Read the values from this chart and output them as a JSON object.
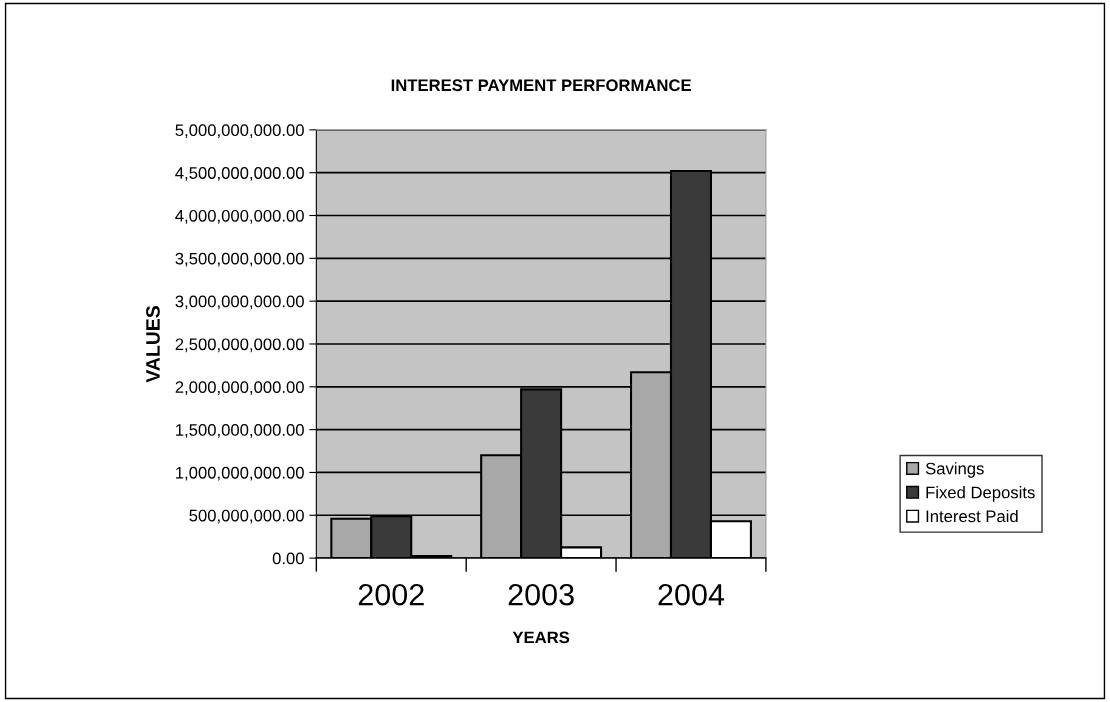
{
  "chart_data": {
    "type": "bar",
    "title": "INTEREST PAYMENT PERFORMANCE",
    "xlabel": "YEARS",
    "ylabel": "VALUES",
    "categories": [
      "2002",
      "2003",
      "2004"
    ],
    "series": [
      {
        "name": "Savings",
        "color": "#a8a8a8",
        "values": [
          460000000,
          1200000000,
          2170000000
        ]
      },
      {
        "name": "Fixed Deposits",
        "color": "#3a3a3a",
        "values": [
          490000000,
          1970000000,
          4520000000
        ]
      },
      {
        "name": "Interest Paid",
        "color": "#ffffff",
        "values": [
          25000000,
          125000000,
          430000000
        ]
      }
    ],
    "ylim": [
      0,
      5000000000
    ],
    "yticks": [
      {
        "value": 0,
        "label": "0.00"
      },
      {
        "value": 500000000,
        "label": "500,000,000.00"
      },
      {
        "value": 1000000000,
        "label": "1,000,000,000.00"
      },
      {
        "value": 1500000000,
        "label": "1,500,000,000.00"
      },
      {
        "value": 2000000000,
        "label": "2,000,000,000.00"
      },
      {
        "value": 2500000000,
        "label": "2,500,000,000.00"
      },
      {
        "value": 3000000000,
        "label": "3,000,000,000.00"
      },
      {
        "value": 3500000000,
        "label": "3,500,000,000.00"
      },
      {
        "value": 4000000000,
        "label": "4,000,000,000.00"
      },
      {
        "value": 4500000000,
        "label": "4,500,000,000.00"
      },
      {
        "value": 5000000000,
        "label": "5,000,000,000.00"
      }
    ],
    "grid": "y",
    "legend": "right"
  }
}
